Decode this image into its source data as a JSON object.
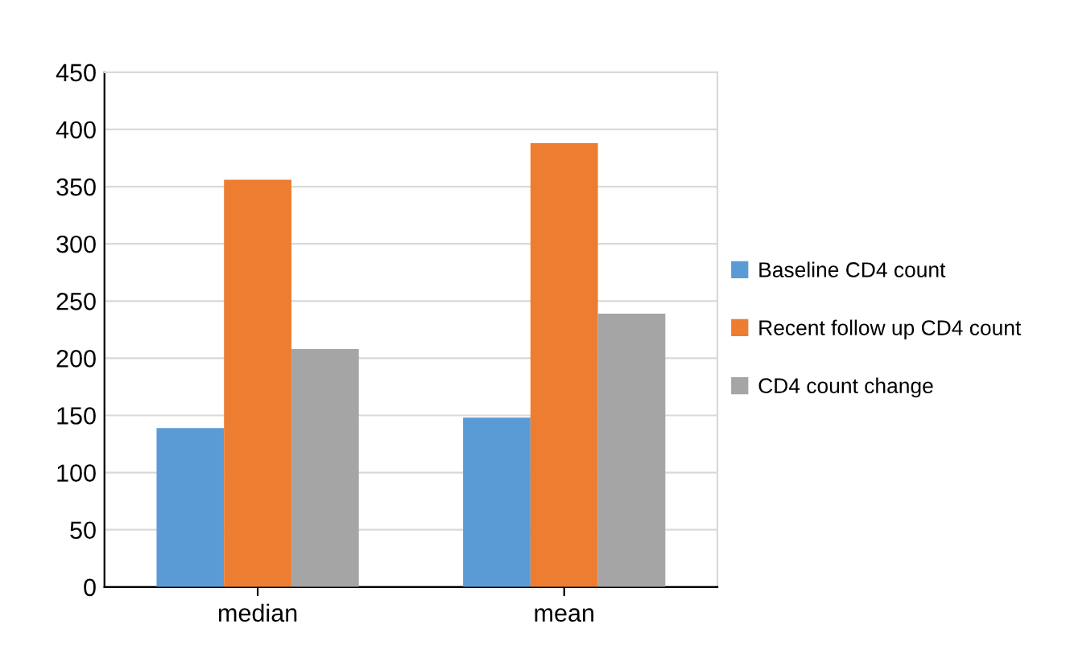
{
  "chart_data": {
    "type": "bar",
    "categories": [
      "median",
      "mean"
    ],
    "series": [
      {
        "name": "Baseline CD4 count",
        "color": "#5b9bd5",
        "values": [
          139,
          148
        ]
      },
      {
        "name": "Recent follow up CD4 count",
        "color": "#ed7d31",
        "values": [
          356,
          388
        ]
      },
      {
        "name": "CD4 count change",
        "color": "#a5a5a5",
        "values": [
          208,
          239
        ]
      }
    ],
    "ylim": [
      0,
      450
    ],
    "yticks": [
      0,
      50,
      100,
      150,
      200,
      250,
      300,
      350,
      400,
      450
    ],
    "grid": "y",
    "legend": "right"
  }
}
